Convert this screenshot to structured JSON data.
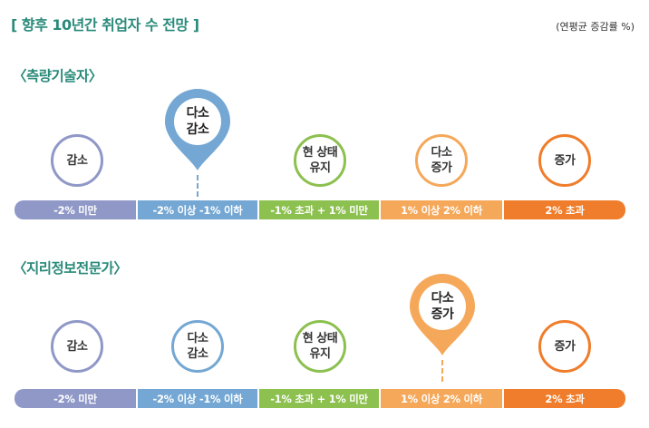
{
  "title": "[ 향후 10년간 취업자 수 전망 ]",
  "unit": "(연평균 증감률 %)",
  "colors": {
    "accent": "#2a8a7a",
    "cat1": "#8f98c7",
    "cat2": "#74a7d3",
    "cat3": "#8cc04f",
    "cat4": "#f5a85a",
    "cat5": "#ef7d2b"
  },
  "categories": [
    {
      "label": "감소",
      "range": "-2% 미만"
    },
    {
      "label": "다소\n감소",
      "range": "-2% 이상 -1% 이하"
    },
    {
      "label": "현 상태\n유지",
      "range": "-1% 초과 + 1% 미만"
    },
    {
      "label": "다소\n증가",
      "range": "1% 이상 2% 이하"
    },
    {
      "label": "증가",
      "range": "2% 초과"
    }
  ],
  "sections": [
    {
      "name": "〈측량기술자〉",
      "selected": "다소\n감소"
    },
    {
      "name": "〈지리정보전문가〉",
      "selected": "다소\n증가"
    }
  ]
}
